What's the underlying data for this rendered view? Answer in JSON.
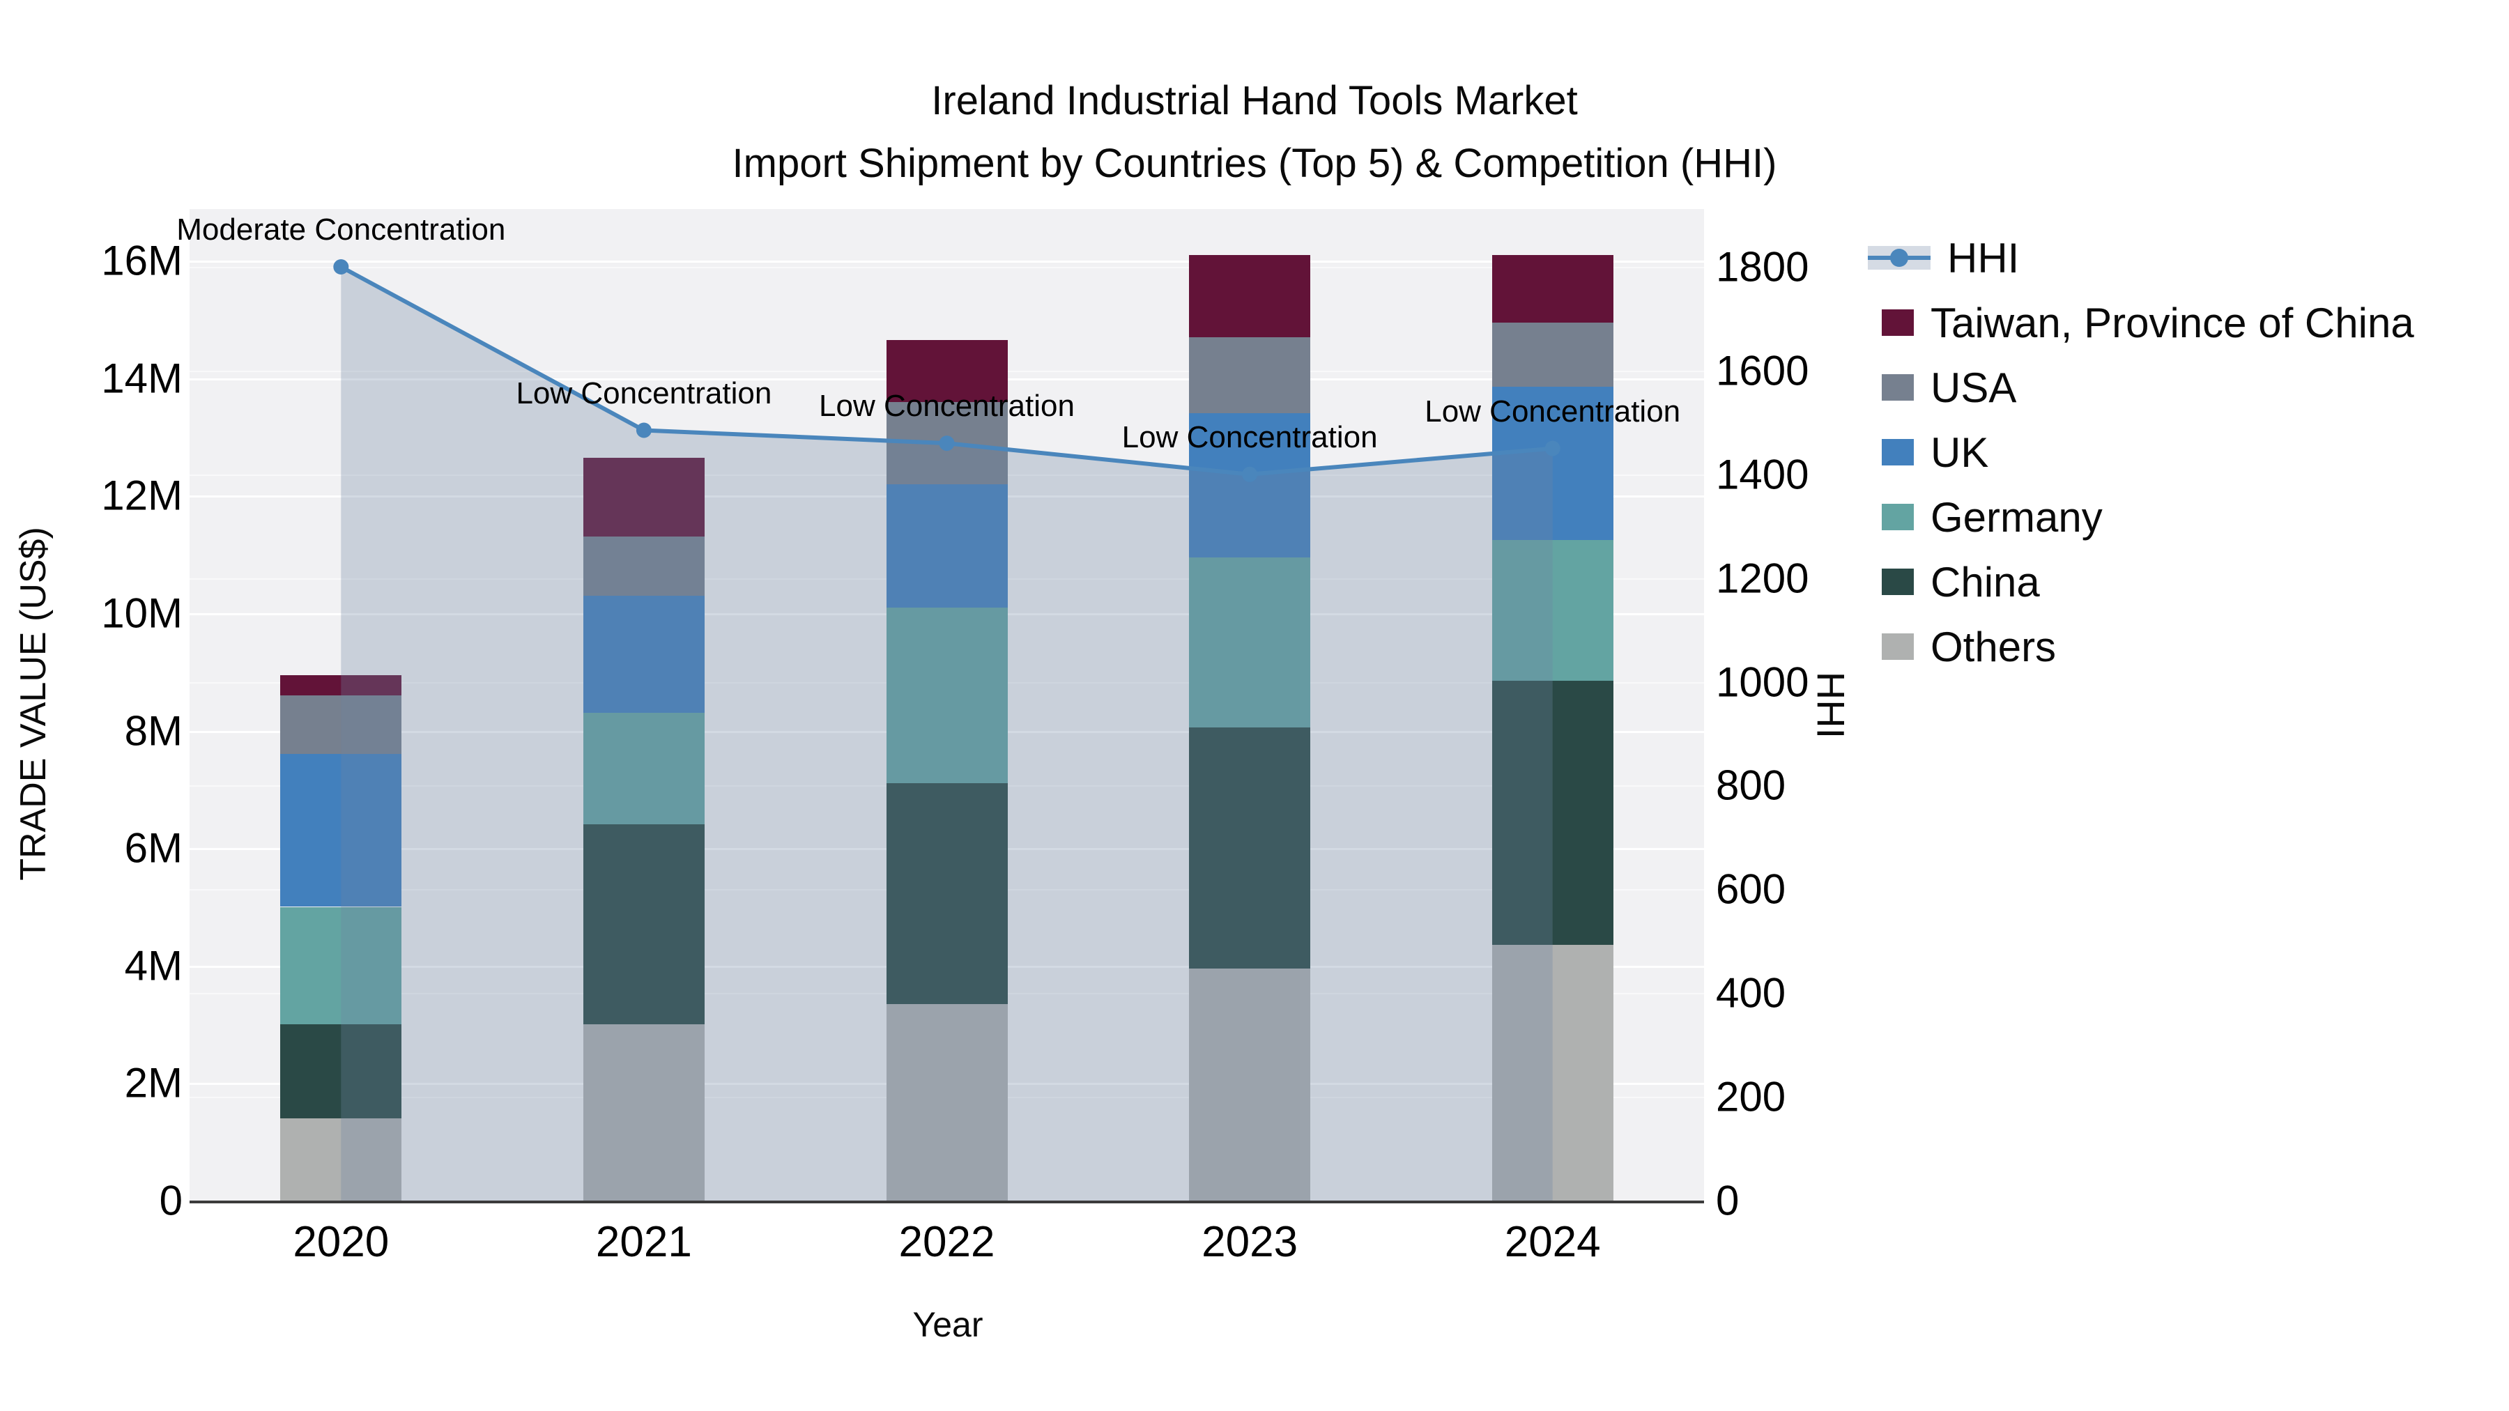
{
  "title": {
    "line1": "Ireland Industrial Hand Tools Market",
    "line2": "Import Shipment by Countries (Top 5) & Competition (HHI)"
  },
  "axes": {
    "x": {
      "title": "Year",
      "categories": [
        "2020",
        "2021",
        "2022",
        "2023",
        "2024"
      ]
    },
    "y_left": {
      "title": "TRADE VALUE (US$)",
      "tick_values": [
        0,
        2,
        4,
        6,
        8,
        10,
        12,
        14,
        16
      ],
      "tick_suffix": "M"
    },
    "y_right": {
      "title": "HHI",
      "tick_values": [
        0,
        200,
        400,
        600,
        800,
        1000,
        1200,
        1400,
        1600,
        1800
      ]
    }
  },
  "legend": {
    "items": [
      {
        "label": "HHI",
        "type": "line",
        "color": "#4A86BC",
        "band_color": "#D5DBE4"
      },
      {
        "label": "Taiwan, Province of China",
        "type": "swatch",
        "color": "#621338"
      },
      {
        "label": "USA",
        "type": "swatch",
        "color": "#76808F"
      },
      {
        "label": "UK",
        "type": "swatch",
        "color": "#4280BD"
      },
      {
        "label": "Germany",
        "type": "swatch",
        "color": "#63A4A2"
      },
      {
        "label": "China",
        "type": "swatch",
        "color": "#2A4946"
      },
      {
        "label": "Others",
        "type": "swatch",
        "color": "#AFB1B0"
      }
    ]
  },
  "chart_data": {
    "type": "bar+line",
    "title": "Ireland Industrial Hand Tools Market — Import Shipment by Countries (Top 5) & Competition (HHI)",
    "xlabel": "Year",
    "ylabel_left": "TRADE VALUE (US$)",
    "ylabel_right": "HHI",
    "categories": [
      "2020",
      "2021",
      "2022",
      "2023",
      "2024"
    ],
    "unit": "US$ millions",
    "stack_order_bottom_to_top": [
      "Others",
      "China",
      "Germany",
      "UK",
      "USA",
      "Taiwan, Province of China"
    ],
    "series": [
      {
        "name": "Others",
        "color": "#AFB1B0",
        "values": [
          1.4,
          3.0,
          3.35,
          3.95,
          4.35
        ]
      },
      {
        "name": "China",
        "color": "#2A4946",
        "values": [
          1.6,
          3.4,
          3.75,
          4.1,
          4.5
        ]
      },
      {
        "name": "Germany",
        "color": "#63A4A2",
        "values": [
          2.0,
          1.9,
          3.0,
          2.9,
          2.4
        ]
      },
      {
        "name": "UK",
        "color": "#4280BD",
        "values": [
          2.6,
          2.0,
          2.1,
          2.45,
          2.6
        ]
      },
      {
        "name": "USA",
        "color": "#76808F",
        "values": [
          1.0,
          1.0,
          1.4,
          1.3,
          1.1
        ]
      },
      {
        "name": "Taiwan, Province of China",
        "color": "#621338",
        "values": [
          0.35,
          1.35,
          1.05,
          1.4,
          1.15
        ]
      }
    ],
    "stack_totals_millions": [
      8.95,
      12.65,
      14.65,
      16.1,
      16.1
    ],
    "hhi": {
      "name": "HHI",
      "color": "#4A86BC",
      "area_fill": "rgba(110,133,163,0.30)",
      "values": [
        1800,
        1485,
        1460,
        1400,
        1450
      ],
      "point_annotations": [
        "Moderate Concentration",
        "Low Concentration",
        "Low Concentration",
        "Low Concentration",
        "Low Concentration"
      ]
    },
    "ylim_left_millions": [
      0,
      16.9
    ],
    "ylim_right": [
      0,
      1914
    ],
    "grid": true,
    "legend_position": "right"
  }
}
